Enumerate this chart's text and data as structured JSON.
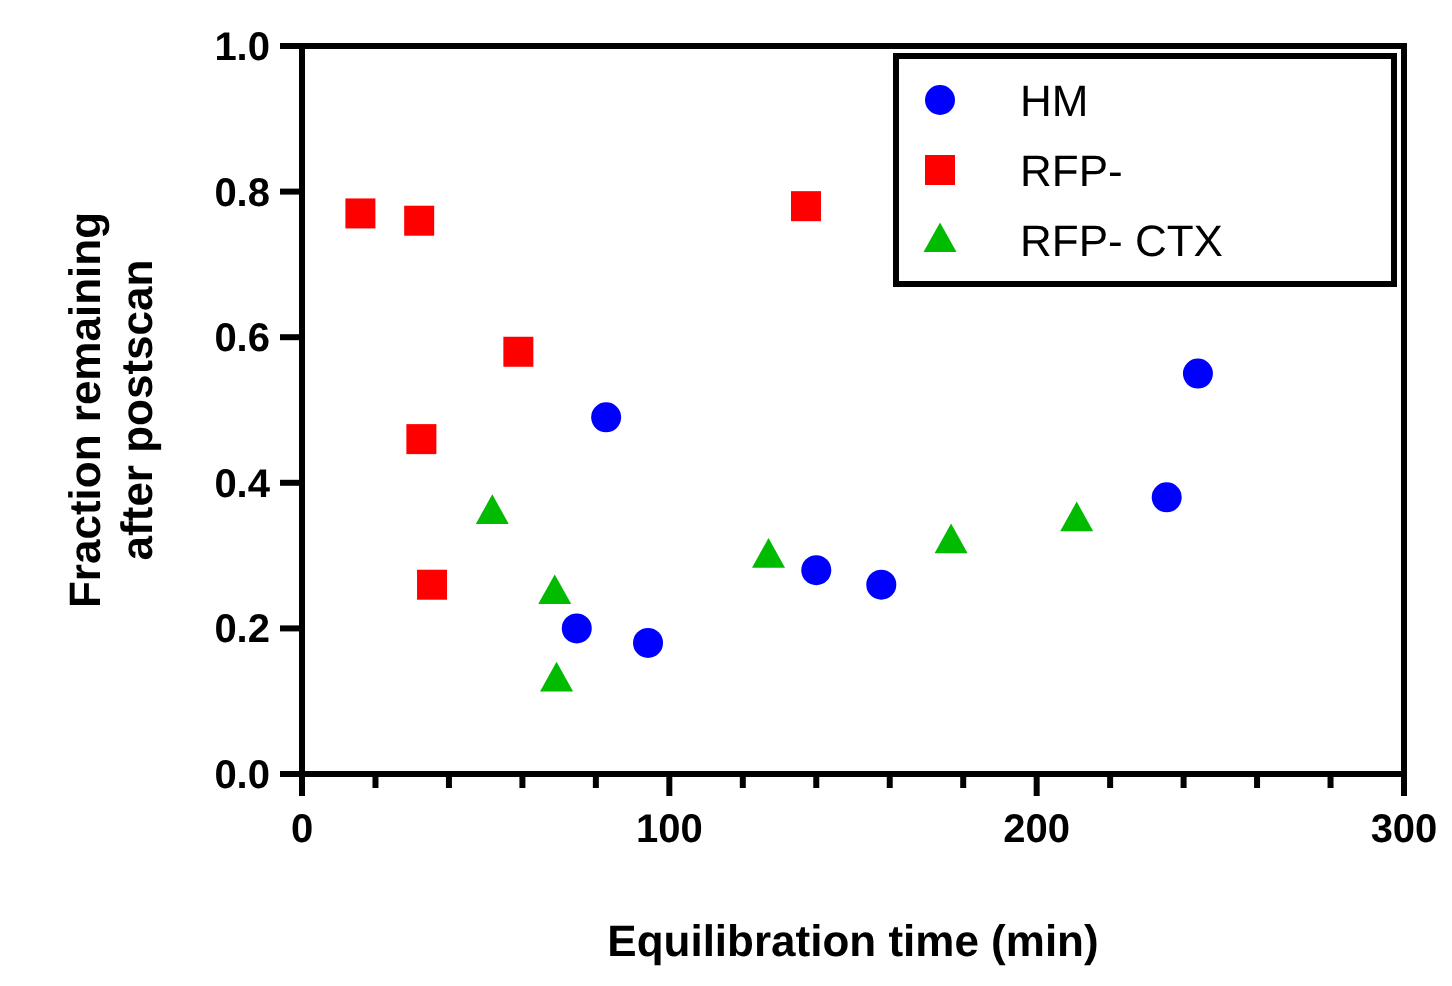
{
  "chart_data": {
    "type": "scatter",
    "xlabel": "Equilibration time (min)",
    "ylabel": "Fraction remaining after postscan",
    "xlim": [
      0,
      300
    ],
    "ylim": [
      0,
      1
    ],
    "xticks": [
      0,
      {
        "value": 20,
        "label": null
      },
      {
        "value": 40,
        "label": null
      },
      {
        "value": 60,
        "label": null
      },
      {
        "value": 80,
        "label": null
      },
      100,
      {
        "value": 120,
        "label": null
      },
      {
        "value": 140,
        "label": null
      },
      {
        "value": 160,
        "label": null
      },
      {
        "value": 180,
        "label": null
      },
      200,
      {
        "value": 220,
        "label": null
      },
      {
        "value": 240,
        "label": null
      },
      {
        "value": 260,
        "label": null
      },
      {
        "value": 280,
        "label": null
      },
      300
    ],
    "yticks": [
      {
        "value": 0,
        "label": "0.0"
      },
      0.2,
      0.4,
      0.6,
      0.8,
      {
        "value": 1,
        "label": "1.0"
      }
    ],
    "grid": false,
    "legend": "top right",
    "series": [
      {
        "name": "HM",
        "color": "#0000ff",
        "marker": "circle",
        "x": [
          82.8,
          74.8,
          94.2,
          140,
          157.7,
          235.4,
          243.9
        ],
        "values": [
          0.49,
          0.2,
          0.18,
          0.28,
          0.26,
          0.38,
          0.55
        ]
      },
      {
        "name": "RFP-",
        "color": "#ff0000",
        "marker": "square",
        "x": [
          15.9,
          31.9,
          58.9,
          32.5,
          35.4,
          137.2
        ],
        "values": [
          0.77,
          0.76,
          0.58,
          0.46,
          0.26,
          0.78
        ]
      },
      {
        "name": "RFP- CTX",
        "color": "#00bb00",
        "marker": "triangle",
        "x": [
          51.8,
          68.8,
          69.3,
          127,
          176.7,
          210.9
        ],
        "values": [
          0.36,
          0.25,
          0.13,
          0.3,
          0.32,
          0.35
        ]
      }
    ]
  }
}
